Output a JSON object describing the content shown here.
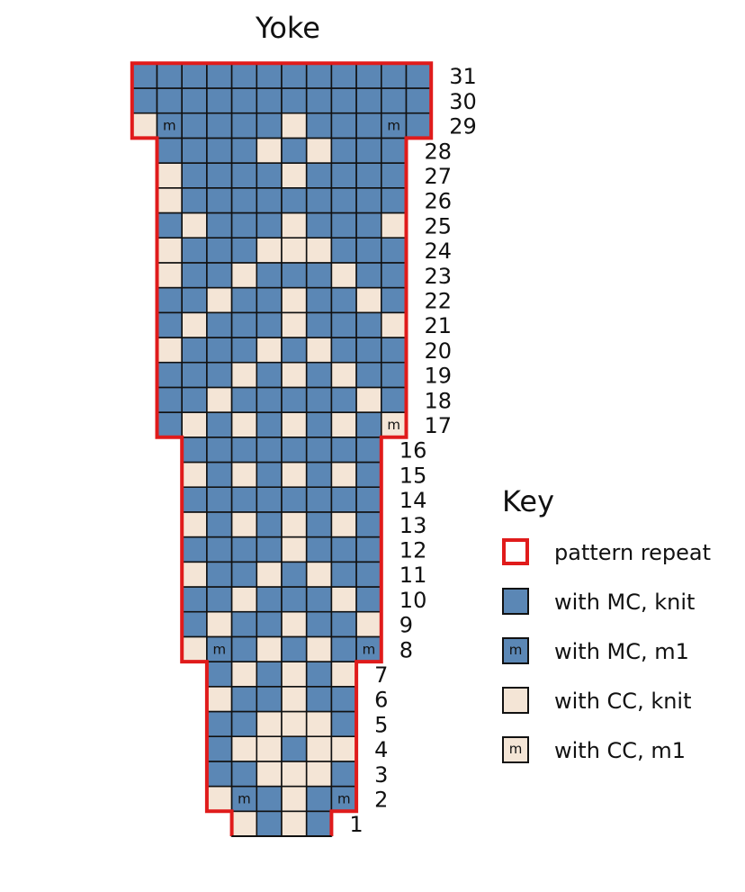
{
  "title": "Yoke",
  "colors": {
    "mc": "#5b87b5",
    "cc": "#f4e5d6",
    "grid": "#111111",
    "repeat": "#e01b1b"
  },
  "symbols": {
    "m1": "m"
  },
  "chart": {
    "rows": [
      {
        "row": 1,
        "cells": "CMCM"
      },
      {
        "row": 2,
        "cells": "CmMCMm"
      },
      {
        "row": 3,
        "cells": "MMCCCM"
      },
      {
        "row": 4,
        "cells": "MCCMCC"
      },
      {
        "row": 5,
        "cells": "MMCCCM"
      },
      {
        "row": 6,
        "cells": "CMMCMM"
      },
      {
        "row": 7,
        "cells": "MCMCMC"
      },
      {
        "row": 8,
        "cells": "CmMCMCMm"
      },
      {
        "row": 9,
        "cells": "MCMMCMMC"
      },
      {
        "row": 10,
        "cells": "MMCMMMCM"
      },
      {
        "row": 11,
        "cells": "CMMCMCMM"
      },
      {
        "row": 12,
        "cells": "MMMMCMMM"
      },
      {
        "row": 13,
        "cells": "CMCMCMCM"
      },
      {
        "row": 14,
        "cells": "MMMMMMMM"
      },
      {
        "row": 15,
        "cells": "CMCMCMCM"
      },
      {
        "row": 16,
        "cells": "MMMMMMMM"
      },
      {
        "row": 17,
        "cells": "MCMCMCMCMc"
      },
      {
        "row": 18,
        "cells": "MMCMMMMMCM"
      },
      {
        "row": 19,
        "cells": "MMMCMCMCMM"
      },
      {
        "row": 20,
        "cells": "CMMMCMCMMM"
      },
      {
        "row": 21,
        "cells": "MCMMMCMMMC"
      },
      {
        "row": 22,
        "cells": "MMCMMCMMCM"
      },
      {
        "row": 23,
        "cells": "CMMCMMMCMM"
      },
      {
        "row": 24,
        "cells": "CMMMCCCMMM"
      },
      {
        "row": 25,
        "cells": "MCMMMCMMMC"
      },
      {
        "row": 26,
        "cells": "CMMMMMMMMM"
      },
      {
        "row": 27,
        "cells": "CMMMMCMMMM"
      },
      {
        "row": 28,
        "cells": "MMMMCMCMMM"
      },
      {
        "row": 29,
        "cells": "CmMMMMCMMMmM"
      },
      {
        "row": 30,
        "cells": "MMMMMMMMMMMM"
      },
      {
        "row": 31,
        "cells": "MMMMMMMMMMMM"
      }
    ]
  },
  "key": {
    "title": "Key",
    "items": [
      {
        "type": "repeat",
        "symbol": "",
        "label": "pattern repeat"
      },
      {
        "type": "M",
        "symbol": "",
        "label": "with MC, knit"
      },
      {
        "type": "m",
        "symbol": "m",
        "label": "with MC, m1"
      },
      {
        "type": "C",
        "symbol": "",
        "label": "with CC, knit"
      },
      {
        "type": "c",
        "symbol": "m",
        "label": "with CC, m1"
      }
    ]
  }
}
